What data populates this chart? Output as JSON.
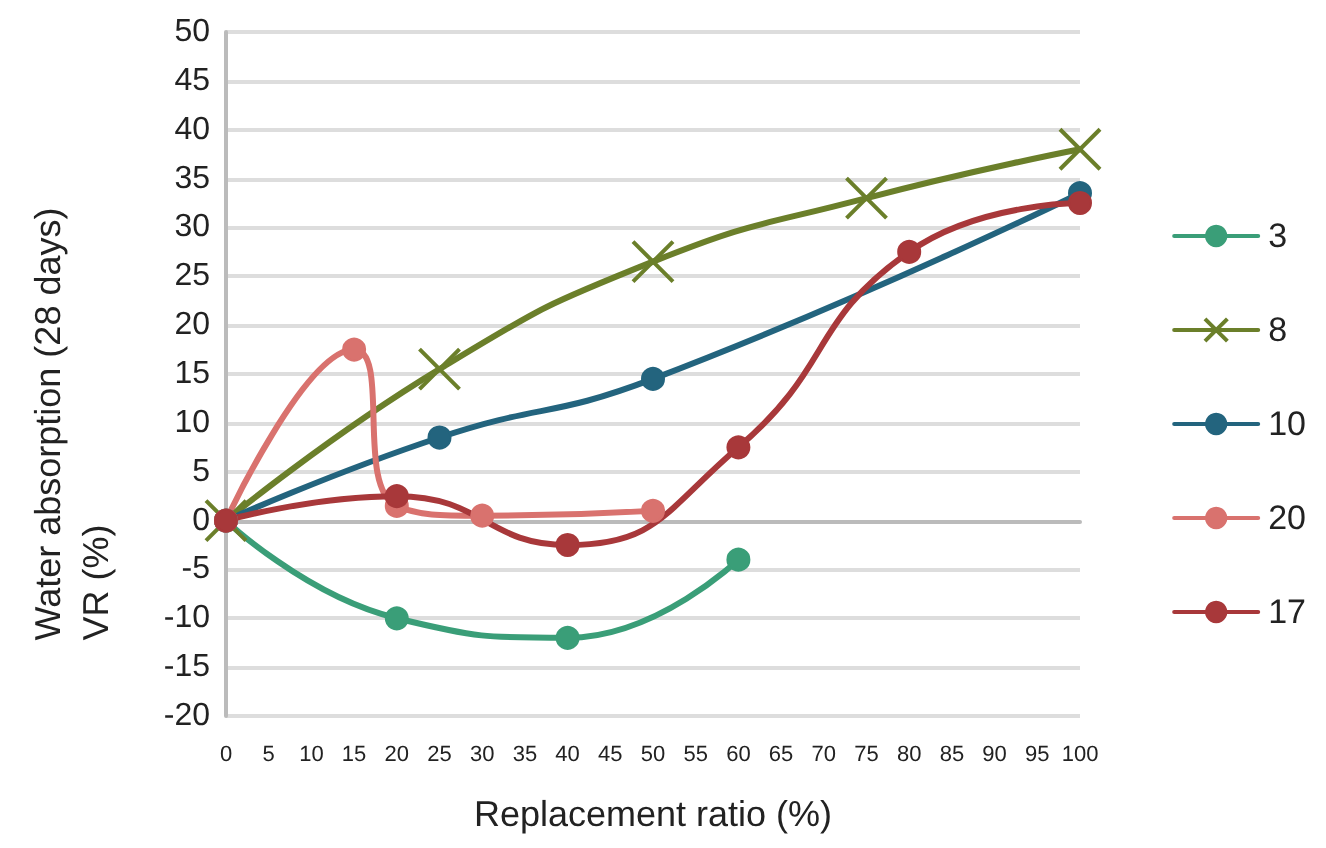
{
  "chart_data": {
    "type": "line",
    "xlabel": "Replacement ratio (%)",
    "ylabel": "Water absorption (28 days)\nVR (%)",
    "xlim": [
      0,
      100
    ],
    "xticks": [
      0,
      5,
      10,
      15,
      20,
      25,
      30,
      35,
      40,
      45,
      50,
      55,
      60,
      65,
      70,
      75,
      80,
      85,
      90,
      95,
      100
    ],
    "ylim": [
      -20,
      50
    ],
    "yticks": [
      -20,
      -15,
      -10,
      -5,
      0,
      5,
      10,
      15,
      20,
      25,
      30,
      35,
      40,
      45,
      50
    ],
    "grid": "y",
    "legend": "right",
    "line_style": "solid",
    "series": [
      {
        "name": "3",
        "color": "#3a9e78",
        "marker": "circle",
        "x": [
          0,
          20,
          40,
          60
        ],
        "values": [
          0,
          -10,
          -12,
          -4
        ]
      },
      {
        "name": "8",
        "color": "#6b7f2a",
        "marker": "cross",
        "x": [
          0,
          25,
          50,
          75,
          100
        ],
        "values": [
          0,
          15.5,
          26.5,
          33,
          38
        ]
      },
      {
        "name": "10",
        "color": "#23647e",
        "marker": "circle",
        "x": [
          0,
          25,
          50,
          100
        ],
        "values": [
          0,
          8.5,
          14.5,
          33.5
        ]
      },
      {
        "name": "20",
        "color": "#d9726e",
        "marker": "circle",
        "x": [
          0,
          15,
          20,
          30,
          50
        ],
        "values": [
          0,
          17.5,
          1.5,
          0.5,
          1
        ]
      },
      {
        "name": "17",
        "color": "#a8383a",
        "marker": "circle",
        "x": [
          0,
          20,
          40,
          60,
          80,
          100
        ],
        "values": [
          0,
          2.5,
          -2.5,
          7.5,
          27.5,
          32.5
        ]
      }
    ]
  }
}
